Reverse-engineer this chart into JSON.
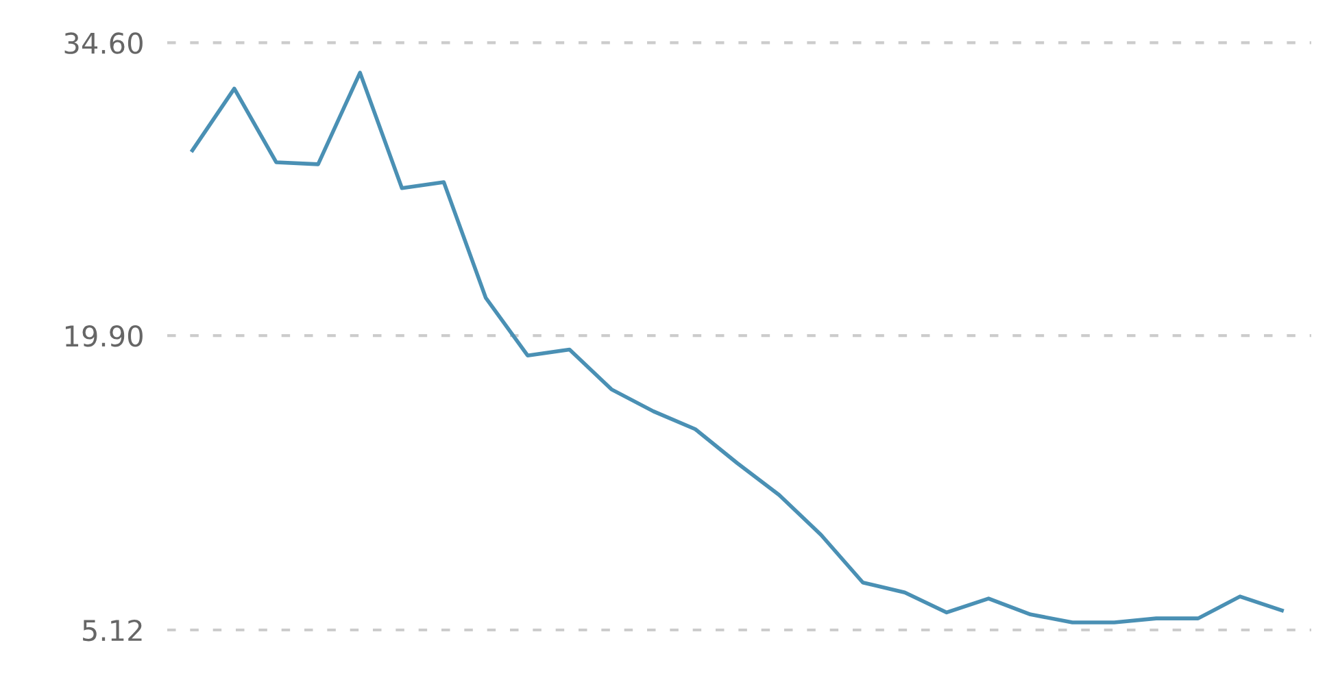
{
  "chart_data": {
    "type": "line",
    "categories": [
      null,
      null,
      null,
      null,
      null,
      null,
      null,
      null,
      null,
      null,
      null,
      null,
      null,
      null,
      null,
      null,
      null,
      null,
      null,
      null,
      null,
      null,
      null,
      null,
      null,
      null,
      null
    ],
    "series": [
      {
        "color": "#4a90b4",
        "values": [
          29.2,
          32.3,
          28.6,
          28.5,
          33.1,
          27.3,
          27.6,
          21.8,
          18.9,
          19.2,
          17.2,
          16.1,
          15.2,
          13.5,
          11.9,
          9.9,
          7.5,
          7.0,
          6.0,
          6.7,
          5.9,
          5.5,
          5.5,
          5.7,
          5.7,
          6.8,
          6.1
        ]
      }
    ],
    "ylim": [
      5.12,
      34.6
    ],
    "yticks": [
      {
        "value": 5.12,
        "label": "5.12"
      },
      {
        "value": 19.9,
        "label": "19.90"
      },
      {
        "value": 34.6,
        "label": "34.60"
      }
    ],
    "grid": "y",
    "line_style": "solid",
    "marker": "none"
  }
}
